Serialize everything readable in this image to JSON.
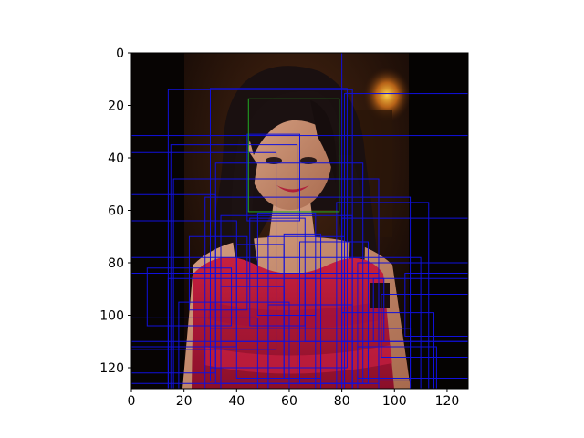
{
  "chart_data": {
    "type": "scatter",
    "title": "",
    "xlabel": "",
    "ylabel": "",
    "xlim": [
      0,
      128
    ],
    "ylim": [
      128,
      0
    ],
    "x_ticks": [
      "0",
      "20",
      "40",
      "60",
      "80",
      "100",
      "120"
    ],
    "y_ticks": [
      "0",
      "20",
      "40",
      "60",
      "80",
      "100",
      "120"
    ],
    "grid": false,
    "legend": "none",
    "image_description_colors": {
      "background_dark": "#0b0603",
      "background_warm": "#3a1f10",
      "hair": "#1a1010",
      "skin": "#c98d70",
      "dress": "#b0163a",
      "blue_box": "#1010dd",
      "green_box": "#22aa22"
    },
    "green_box": {
      "x0": 44.5,
      "y0": 17.5,
      "x1": 79.0,
      "y1": 60.5
    },
    "blue_boxes": [
      {
        "x0": 0.0,
        "y0": 0.0,
        "x1": 80.0,
        "y1": 128.0
      },
      {
        "x0": 14.0,
        "y0": 14.0,
        "x1": 84.0,
        "y1": 128.0
      },
      {
        "x0": 30.0,
        "y0": 13.5,
        "x1": 82.0,
        "y1": 120.0
      },
      {
        "x0": 81.0,
        "y0": 15.5,
        "x1": 128.0,
        "y1": 128.0
      },
      {
        "x0": 0.0,
        "y0": 31.5,
        "x1": 128.0,
        "y1": 128.0
      },
      {
        "x0": 15.0,
        "y0": 35.0,
        "x1": 63.0,
        "y1": 128.0
      },
      {
        "x0": 0.0,
        "y0": 38.0,
        "x1": 55.0,
        "y1": 113.0
      },
      {
        "x0": 44.0,
        "y0": 31.0,
        "x1": 64.0,
        "y1": 64.0
      },
      {
        "x0": 32.0,
        "y0": 42.0,
        "x1": 88.0,
        "y1": 126.0
      },
      {
        "x0": 16.0,
        "y0": 48.0,
        "x1": 94.0,
        "y1": 128.0
      },
      {
        "x0": 0.0,
        "y0": 54.0,
        "x1": 32.0,
        "y1": 122.0
      },
      {
        "x0": 28.0,
        "y0": 55.0,
        "x1": 106.0,
        "y1": 128.0
      },
      {
        "x0": 0.0,
        "y0": 64.0,
        "x1": 40.0,
        "y1": 112.0
      },
      {
        "x0": 34.0,
        "y0": 62.0,
        "x1": 84.0,
        "y1": 128.0
      },
      {
        "x0": 45.0,
        "y0": 63.0,
        "x1": 66.0,
        "y1": 104.0
      },
      {
        "x0": 48.0,
        "y0": 61.0,
        "x1": 70.0,
        "y1": 100.0
      },
      {
        "x0": 58.0,
        "y0": 69.0,
        "x1": 72.0,
        "y1": 124.0
      },
      {
        "x0": 40.0,
        "y0": 73.0,
        "x1": 58.0,
        "y1": 124.0
      },
      {
        "x0": 52.0,
        "y0": 70.0,
        "x1": 81.0,
        "y1": 128.0
      },
      {
        "x0": 64.0,
        "y0": 72.0,
        "x1": 90.0,
        "y1": 126.0
      },
      {
        "x0": 78.0,
        "y0": 57.0,
        "x1": 113.0,
        "y1": 128.0
      },
      {
        "x0": 80.0,
        "y0": 63.0,
        "x1": 128.0,
        "y1": 110.0
      },
      {
        "x0": 0.0,
        "y0": 78.0,
        "x1": 110.0,
        "y1": 128.0
      },
      {
        "x0": 0.0,
        "y0": 84.0,
        "x1": 94.0,
        "y1": 126.0
      },
      {
        "x0": 14.0,
        "y0": 86.0,
        "x1": 70.0,
        "y1": 128.0
      },
      {
        "x0": 18.0,
        "y0": 95.0,
        "x1": 60.0,
        "y1": 128.0
      },
      {
        "x0": 86.0,
        "y0": 80.0,
        "x1": 128.0,
        "y1": 124.0
      },
      {
        "x0": 92.0,
        "y0": 86.0,
        "x1": 128.0,
        "y1": 110.0
      },
      {
        "x0": 80.0,
        "y0": 99.0,
        "x1": 115.0,
        "y1": 128.0
      },
      {
        "x0": 0.0,
        "y0": 101.0,
        "x1": 48.0,
        "y1": 128.0
      },
      {
        "x0": 0.0,
        "y0": 110.0,
        "x1": 72.0,
        "y1": 128.0
      },
      {
        "x0": 30.0,
        "y0": 105.0,
        "x1": 106.0,
        "y1": 125.0
      },
      {
        "x0": 95.0,
        "y0": 92.0,
        "x1": 128.0,
        "y1": 116.0
      },
      {
        "x0": 104.0,
        "y0": 84.0,
        "x1": 128.0,
        "y1": 108.0
      },
      {
        "x0": 34.0,
        "y0": 89.0,
        "x1": 58.0,
        "y1": 110.0
      },
      {
        "x0": 66.0,
        "y0": 86.0,
        "x1": 96.0,
        "y1": 110.0
      },
      {
        "x0": 22.0,
        "y0": 70.0,
        "x1": 44.0,
        "y1": 98.0
      },
      {
        "x0": 6.0,
        "y0": 82.0,
        "x1": 38.0,
        "y1": 104.0
      },
      {
        "x0": 86.0,
        "y0": 112.0,
        "x1": 116.0,
        "y1": 128.0
      },
      {
        "x0": 52.0,
        "y0": 96.0,
        "x1": 84.0,
        "y1": 128.0
      }
    ]
  }
}
